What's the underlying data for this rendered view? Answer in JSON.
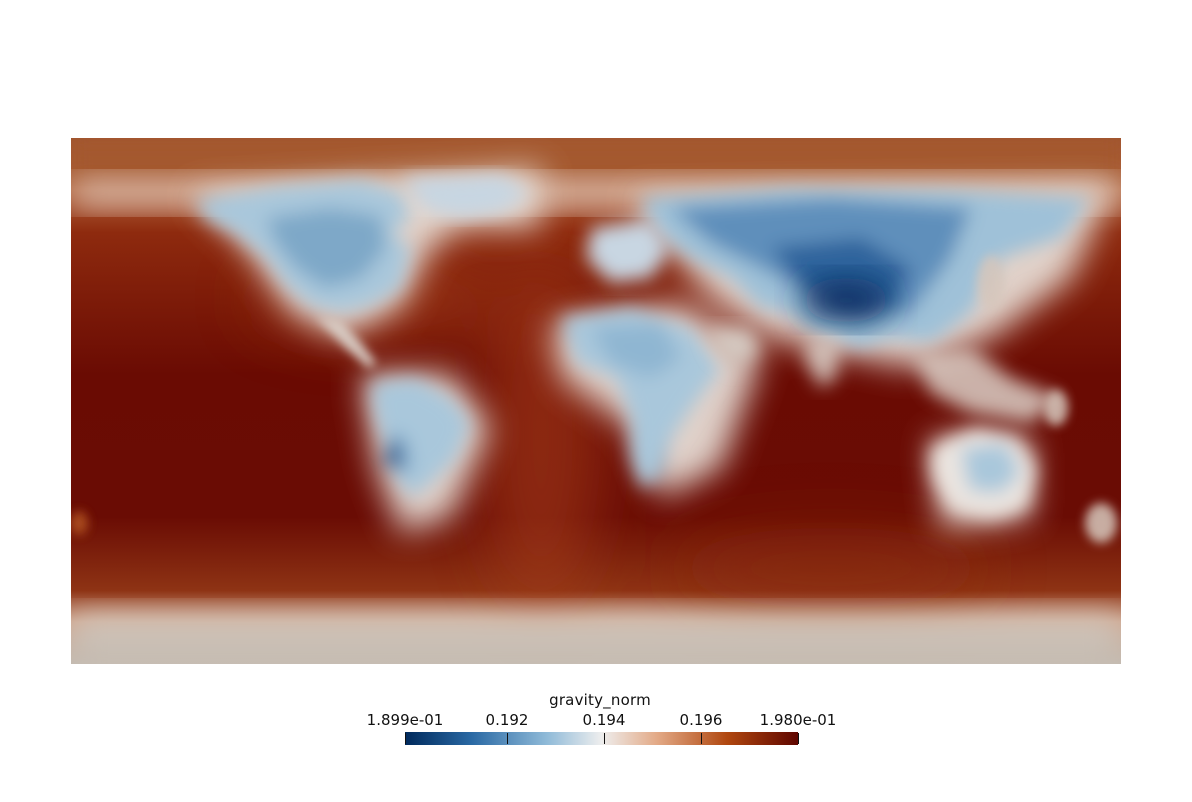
{
  "scene": {
    "background": "#ffffff",
    "projection": "equirectangular",
    "field": "gravity_norm"
  },
  "colorbar": {
    "title": "gravity_norm",
    "range": [
      0.1899,
      0.198
    ],
    "ticks": [
      {
        "value": 0.1899,
        "label": "1.899e-01"
      },
      {
        "value": 0.192,
        "label": "0.192"
      },
      {
        "value": 0.194,
        "label": "0.194"
      },
      {
        "value": 0.196,
        "label": "0.196"
      },
      {
        "value": 0.198,
        "label": "1.980e-01"
      }
    ],
    "colormap": [
      "#002a5c",
      "#2a69a4",
      "#8fbad8",
      "#eeeeee",
      "#e3aa87",
      "#b0470f",
      "#5f0600"
    ]
  },
  "colors": {
    "ocean_deep": "#6a0c04",
    "ocean_mid": "#9c2e10",
    "ocean_edge": "#d8b8a8",
    "land_low": "#a6c8dd",
    "land_mid": "#6f9fc4",
    "land_deep": "#0a3a72",
    "polar_north": "#a65a35",
    "polar_south": "#c4bcb2",
    "coast": "#eae6e2"
  }
}
